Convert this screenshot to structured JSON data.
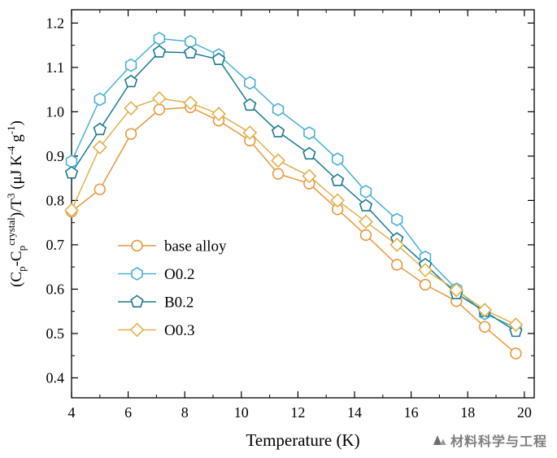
{
  "watermark": {
    "text": "材料科学与工程",
    "color": "#7d7d7d"
  },
  "chart_data": {
    "type": "line",
    "title": "",
    "xlabel": "Temperature (K)",
    "ylabel": "(Cp-Cpcrystal)/T3 (μJ K-4 g-1)",
    "ylabel_segments": [
      {
        "t": "(C",
        "s": "n"
      },
      {
        "t": "p",
        "s": "sub"
      },
      {
        "t": "-C",
        "s": "n"
      },
      {
        "t": "p",
        "s": "sub"
      },
      {
        "t": "crystal",
        "s": "sup"
      },
      {
        "t": ")/T",
        "s": "n"
      },
      {
        "t": "3",
        "s": "sup"
      },
      {
        "t": " (μJ K",
        "s": "n"
      },
      {
        "t": "-4",
        "s": "sup"
      },
      {
        "t": " g",
        "s": "n"
      },
      {
        "t": "-1",
        "s": "sup"
      },
      {
        "t": ")",
        "s": "n"
      }
    ],
    "xlim": [
      4,
      20.35
    ],
    "ylim": [
      0.355,
      1.23
    ],
    "x_ticks": [
      4,
      6,
      8,
      10,
      12,
      14,
      16,
      18,
      20
    ],
    "x_minor_ticks": [
      5,
      7,
      9,
      11,
      13,
      15,
      17,
      19
    ],
    "y_tick_values": [
      0.4,
      0.5,
      0.6,
      0.7,
      0.8,
      0.9,
      1.0,
      1.1,
      1.2
    ],
    "y_tick_labels": [
      "0.4",
      "0.5",
      "0.6",
      "0.7",
      "0.8",
      "0.9",
      "1.0",
      "1.1",
      "1.2"
    ],
    "y_minor_ticks": [
      0.45,
      0.55,
      0.65,
      0.75,
      0.85,
      0.95,
      1.05,
      1.15
    ],
    "grid": false,
    "legend_position": "inside-left",
    "x": [
      4.0,
      5.0,
      6.1,
      7.1,
      8.2,
      9.2,
      10.3,
      11.3,
      12.4,
      13.4,
      14.4,
      15.5,
      16.5,
      17.6,
      18.6,
      19.7
    ],
    "series": [
      {
        "name": "base alloy",
        "marker": "circle",
        "color": "#E8973C",
        "values": [
          0.775,
          0.825,
          0.95,
          1.005,
          1.01,
          0.98,
          0.935,
          0.86,
          0.838,
          0.78,
          0.722,
          0.655,
          0.61,
          0.573,
          0.515,
          0.455
        ]
      },
      {
        "name": "O0.2",
        "marker": "hexagon",
        "color": "#4AAFD5",
        "values": [
          0.888,
          1.028,
          1.105,
          1.165,
          1.158,
          1.128,
          1.065,
          1.005,
          0.952,
          0.893,
          0.82,
          0.757,
          0.672,
          0.6,
          0.545,
          0.513
        ]
      },
      {
        "name": "B0.2",
        "marker": "pentagon",
        "color": "#1B7A8F",
        "values": [
          0.862,
          0.96,
          1.068,
          1.135,
          1.133,
          1.118,
          1.015,
          0.955,
          0.905,
          0.845,
          0.788,
          0.713,
          0.655,
          0.59,
          0.55,
          0.505
        ]
      },
      {
        "name": "O0.3",
        "marker": "diamond",
        "color": "#E0B04A",
        "values": [
          0.778,
          0.92,
          1.008,
          1.03,
          1.02,
          0.995,
          0.953,
          0.89,
          0.855,
          0.8,
          0.752,
          0.7,
          0.643,
          0.598,
          0.553,
          0.52
        ]
      }
    ]
  }
}
